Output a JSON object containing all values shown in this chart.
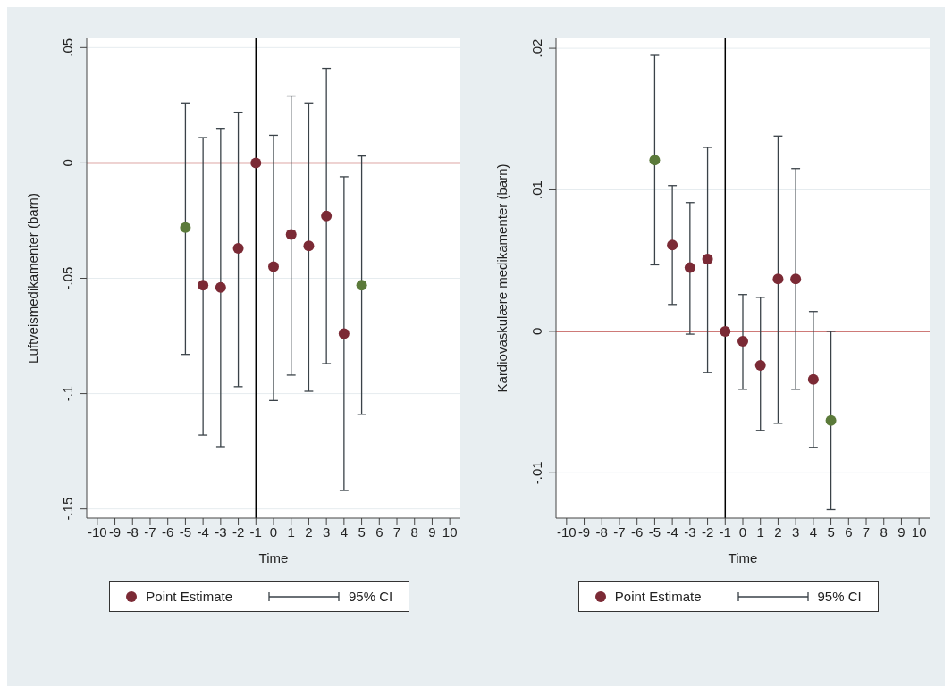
{
  "chart_data": [
    {
      "type": "scatter",
      "xlabel": "Time",
      "ylabel": "Luftveismedikamenter (barn)",
      "x": [
        -5,
        -4,
        -3,
        -2,
        -1,
        0,
        1,
        2,
        3,
        4,
        5
      ],
      "series": [
        {
          "name": "Point Estimate",
          "color": "#7b2a35",
          "colors": [
            "#5b7a3a",
            "#7b2a35",
            "#7b2a35",
            "#7b2a35",
            "#7b2a35",
            "#7b2a35",
            "#7b2a35",
            "#7b2a35",
            "#7b2a35",
            "#7b2a35",
            "#5b7a3a"
          ],
          "values": [
            -0.028,
            -0.053,
            -0.054,
            -0.037,
            0,
            -0.045,
            -0.031,
            -0.036,
            -0.023,
            -0.074,
            -0.053
          ],
          "errors": [
            [
              -0.083,
              0.026
            ],
            [
              -0.118,
              0.011
            ],
            [
              -0.123,
              0.015
            ],
            [
              -0.097,
              0.022
            ],
            null,
            [
              -0.103,
              0.012
            ],
            [
              -0.092,
              0.029
            ],
            [
              -0.099,
              0.026
            ],
            [
              -0.087,
              0.041
            ],
            [
              -0.142,
              -0.006
            ],
            [
              -0.109,
              0.003
            ]
          ]
        }
      ],
      "annotations": [
        "95% CI"
      ],
      "xlim": [
        -10.6,
        10.6
      ],
      "xticks": [
        -10,
        -9,
        -8,
        -7,
        -6,
        -5,
        -4,
        -3,
        -2,
        -1,
        0,
        1,
        2,
        3,
        4,
        5,
        6,
        7,
        8,
        9,
        10
      ],
      "ylim": [
        -0.154,
        0.054
      ],
      "yticks": [
        {
          "value": -0.15,
          "label": "-.15"
        },
        {
          "value": -0.1,
          "label": "-.1"
        },
        {
          "value": -0.05,
          "label": "-.05"
        },
        0,
        {
          "value": 0.05,
          "label": ".05"
        }
      ],
      "ref_lines": [
        {
          "axis": "y",
          "value": 0,
          "color": "#c0504d"
        },
        {
          "axis": "x",
          "value": -1,
          "color": "#000000"
        }
      ],
      "grid": "y",
      "legend": "bottom",
      "marker": "circle"
    },
    {
      "type": "scatter",
      "xlabel": "Time",
      "ylabel": "Kardiovaskulære medikamenter (barn)",
      "x": [
        -5,
        -4,
        -3,
        -2,
        -1,
        0,
        1,
        2,
        3,
        4,
        5
      ],
      "series": [
        {
          "name": "Point Estimate",
          "color": "#7b2a35",
          "colors": [
            "#5b7a3a",
            "#7b2a35",
            "#7b2a35",
            "#7b2a35",
            "#7b2a35",
            "#7b2a35",
            "#7b2a35",
            "#7b2a35",
            "#7b2a35",
            "#7b2a35",
            "#5b7a3a"
          ],
          "values": [
            0.0121,
            0.0061,
            0.0045,
            0.0051,
            0,
            -0.0007,
            -0.0024,
            0.0037,
            0.0037,
            -0.0034,
            -0.0063
          ],
          "errors": [
            [
              0.0047,
              0.0195
            ],
            [
              0.0019,
              0.0103
            ],
            [
              -0.0002,
              0.0091
            ],
            [
              -0.0029,
              0.013
            ],
            null,
            [
              -0.0041,
              0.0026
            ],
            [
              -0.007,
              0.0024
            ],
            [
              -0.0065,
              0.0138
            ],
            [
              -0.0041,
              0.0115
            ],
            [
              -0.0082,
              0.0014
            ],
            [
              -0.0126,
              0
            ]
          ]
        }
      ],
      "annotations": [
        "95% CI"
      ],
      "xlim": [
        -10.6,
        10.6
      ],
      "xticks": [
        -10,
        -9,
        -8,
        -7,
        -6,
        -5,
        -4,
        -3,
        -2,
        -1,
        0,
        1,
        2,
        3,
        4,
        5,
        6,
        7,
        8,
        9,
        10
      ],
      "ylim": [
        -0.0132,
        0.0207
      ],
      "yticks": [
        {
          "value": -0.01,
          "label": "-.01"
        },
        0,
        {
          "value": 0.01,
          "label": ".01"
        },
        {
          "value": 0.02,
          "label": ".02"
        }
      ],
      "ref_lines": [
        {
          "axis": "y",
          "value": 0,
          "color": "#c0504d"
        },
        {
          "axis": "x",
          "value": -1,
          "color": "#000000"
        }
      ],
      "grid": "y",
      "legend": "bottom",
      "marker": "circle"
    }
  ]
}
